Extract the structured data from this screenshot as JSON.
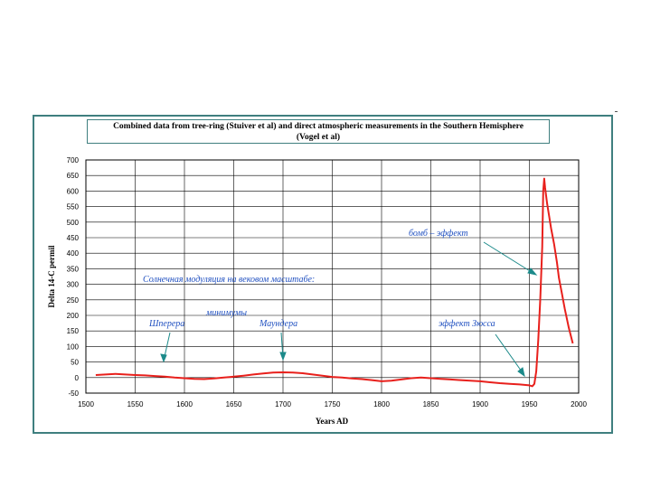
{
  "chart_data": {
    "type": "line",
    "title_line1": "Combined data from tree-ring (Stuiver et al) and direct atmospheric measurements in the Southern Hemisphere",
    "title_line2": "(Vogel et al)",
    "xlabel": "Years AD",
    "ylabel": "Delta 14-C permil",
    "xlim": [
      1500,
      2000
    ],
    "ylim": [
      -50,
      700
    ],
    "x_ticks": [
      "1500",
      "1550",
      "1600",
      "1650",
      "1700",
      "1750",
      "1800",
      "1850",
      "1900",
      "1950",
      "2000"
    ],
    "y_ticks": [
      "700",
      "650",
      "600",
      "550",
      "500",
      "450",
      "400",
      "350",
      "300",
      "250",
      "200",
      "150",
      "100",
      "50",
      "0",
      "-50"
    ],
    "grid": true,
    "line_color": "#e8201c",
    "series": [
      {
        "x": [
          1510,
          1520,
          1530,
          1540,
          1550,
          1560,
          1570,
          1580,
          1590,
          1600,
          1610,
          1620,
          1630,
          1640,
          1650,
          1660,
          1670,
          1680,
          1690,
          1700,
          1710,
          1720,
          1730,
          1740,
          1750,
          1760,
          1770,
          1780,
          1790,
          1800,
          1810,
          1820,
          1830,
          1840,
          1850,
          1860,
          1870,
          1880,
          1890,
          1900,
          1910,
          1920,
          1930,
          1940,
          1950,
          1953,
          1955,
          1957,
          1959,
          1961,
          1963,
          1964,
          1965,
          1966,
          1968,
          1970,
          1972,
          1975,
          1978,
          1980,
          1983,
          1986,
          1990,
          1994
        ],
        "y": [
          8,
          10,
          12,
          10,
          8,
          7,
          5,
          3,
          0,
          -2,
          -4,
          -5,
          -3,
          0,
          3,
          6,
          10,
          13,
          16,
          17,
          16,
          14,
          10,
          6,
          2,
          0,
          -3,
          -5,
          -8,
          -12,
          -10,
          -6,
          -2,
          0,
          -2,
          -4,
          -6,
          -8,
          -10,
          -12,
          -15,
          -18,
          -20,
          -22,
          -25,
          -28,
          -20,
          20,
          120,
          250,
          420,
          600,
          640,
          610,
          560,
          520,
          480,
          430,
          370,
          320,
          270,
          220,
          160,
          110
        ]
      }
    ],
    "annotations": {
      "solar_modulation": "Солнечная модуляция на вековом масштабе:",
      "minima": "минимумы",
      "shperer": "Шперера",
      "maunder": "Маундера",
      "suess": "эффект Зюсса",
      "bomb": "бомб – эффект"
    }
  }
}
